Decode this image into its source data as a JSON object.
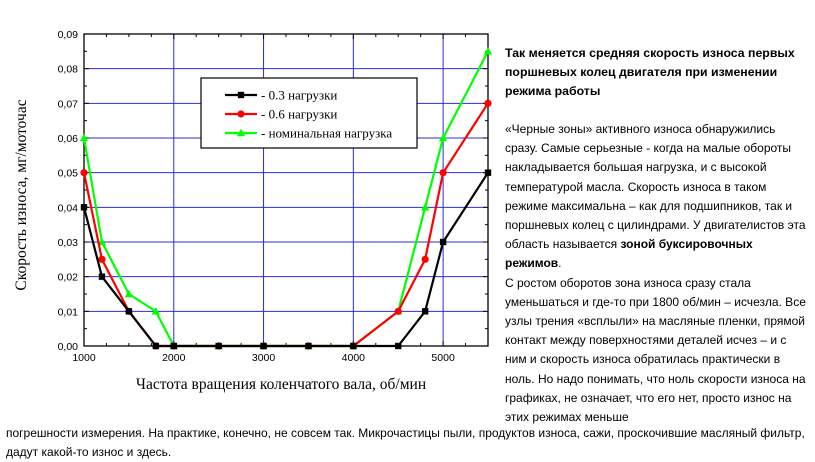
{
  "chart_data": {
    "type": "line",
    "title": "",
    "xlabel": "Частота вращения коленчатого вала, об/мин",
    "ylabel": "Скорость износа, мг/моточас",
    "xlim": [
      1000,
      5500
    ],
    "ylim": [
      0.0,
      0.09
    ],
    "x_ticks": [
      "1000",
      "2000",
      "3000",
      "4000",
      "5000"
    ],
    "y_ticks": [
      "0,00",
      "0,01",
      "0,02",
      "0,03",
      "0,04",
      "0,05",
      "0,06",
      "0,07",
      "0,08",
      "0,09"
    ],
    "grid": true,
    "legend_position": "top-center",
    "series": [
      {
        "name": "- 0.3 нагрузки",
        "color": "#000000",
        "marker": "square",
        "x": [
          1000,
          1200,
          1500,
          1800,
          2000,
          2500,
          3000,
          3500,
          4000,
          4500,
          4800,
          5000,
          5500
        ],
        "y": [
          0.04,
          0.02,
          0.01,
          0.0,
          0.0,
          0.0,
          0.0,
          0.0,
          0.0,
          0.0,
          0.01,
          0.03,
          0.05
        ]
      },
      {
        "name": "- 0.6 нагрузки",
        "color": "#ff0000",
        "marker": "circle",
        "x": [
          1000,
          1200,
          1500,
          1800,
          2000,
          2500,
          3000,
          3500,
          4000,
          4500,
          4800,
          5000,
          5500
        ],
        "y": [
          0.05,
          0.025,
          0.01,
          0.0,
          0.0,
          0.0,
          0.0,
          0.0,
          0.0,
          0.01,
          0.025,
          0.05,
          0.07
        ]
      },
      {
        "name": "- номинальная нагрузка",
        "color": "#00ff00",
        "marker": "triangle",
        "x": [
          1000,
          1200,
          1500,
          1800,
          2000,
          2500,
          3000,
          3500,
          4000,
          4500,
          4800,
          5000,
          5500
        ],
        "y": [
          0.06,
          0.03,
          0.015,
          0.01,
          0.0,
          0.0,
          0.0,
          0.0,
          0.0,
          0.01,
          0.04,
          0.06,
          0.085
        ]
      }
    ]
  },
  "article": {
    "title": "Так меняется средняя скорость износа первых поршневых колец двигателя при изменении режима работы",
    "p1_start": "«Черные зоны» активного износа обнаружились сразу. Самые серьезные - когда на малые обороты накладывается большая нагрузка, и с высокой температурой масла. Скорость износа в таком режиме максимальна – как для подшипников, так и поршневых колец с цилиндрами. У двигателистов эта область называется ",
    "p1_bold": "зоной буксировочных режимов",
    "p1_end": ".",
    "p2": "С ростом оборотов зона износа сразу стала уменьшаться и где-то при 1800 об/мин – исчезла. Все узлы трения «всплыли» на масляные пленки, прямой контакт между поверхностями деталей исчез – и с ним и скорость износа обратилась практически в ноль. Но надо понимать, что ноль скорости износа на графиках, не означает, что его нет, просто износ на этих режимах меньше",
    "p3": "погрешности измерения. На практике, конечно, не совсем так. Микрочастицы пыли, продуктов износа, сажи, проскочившие масляный фильтр, дадут какой-то износ и здесь."
  }
}
